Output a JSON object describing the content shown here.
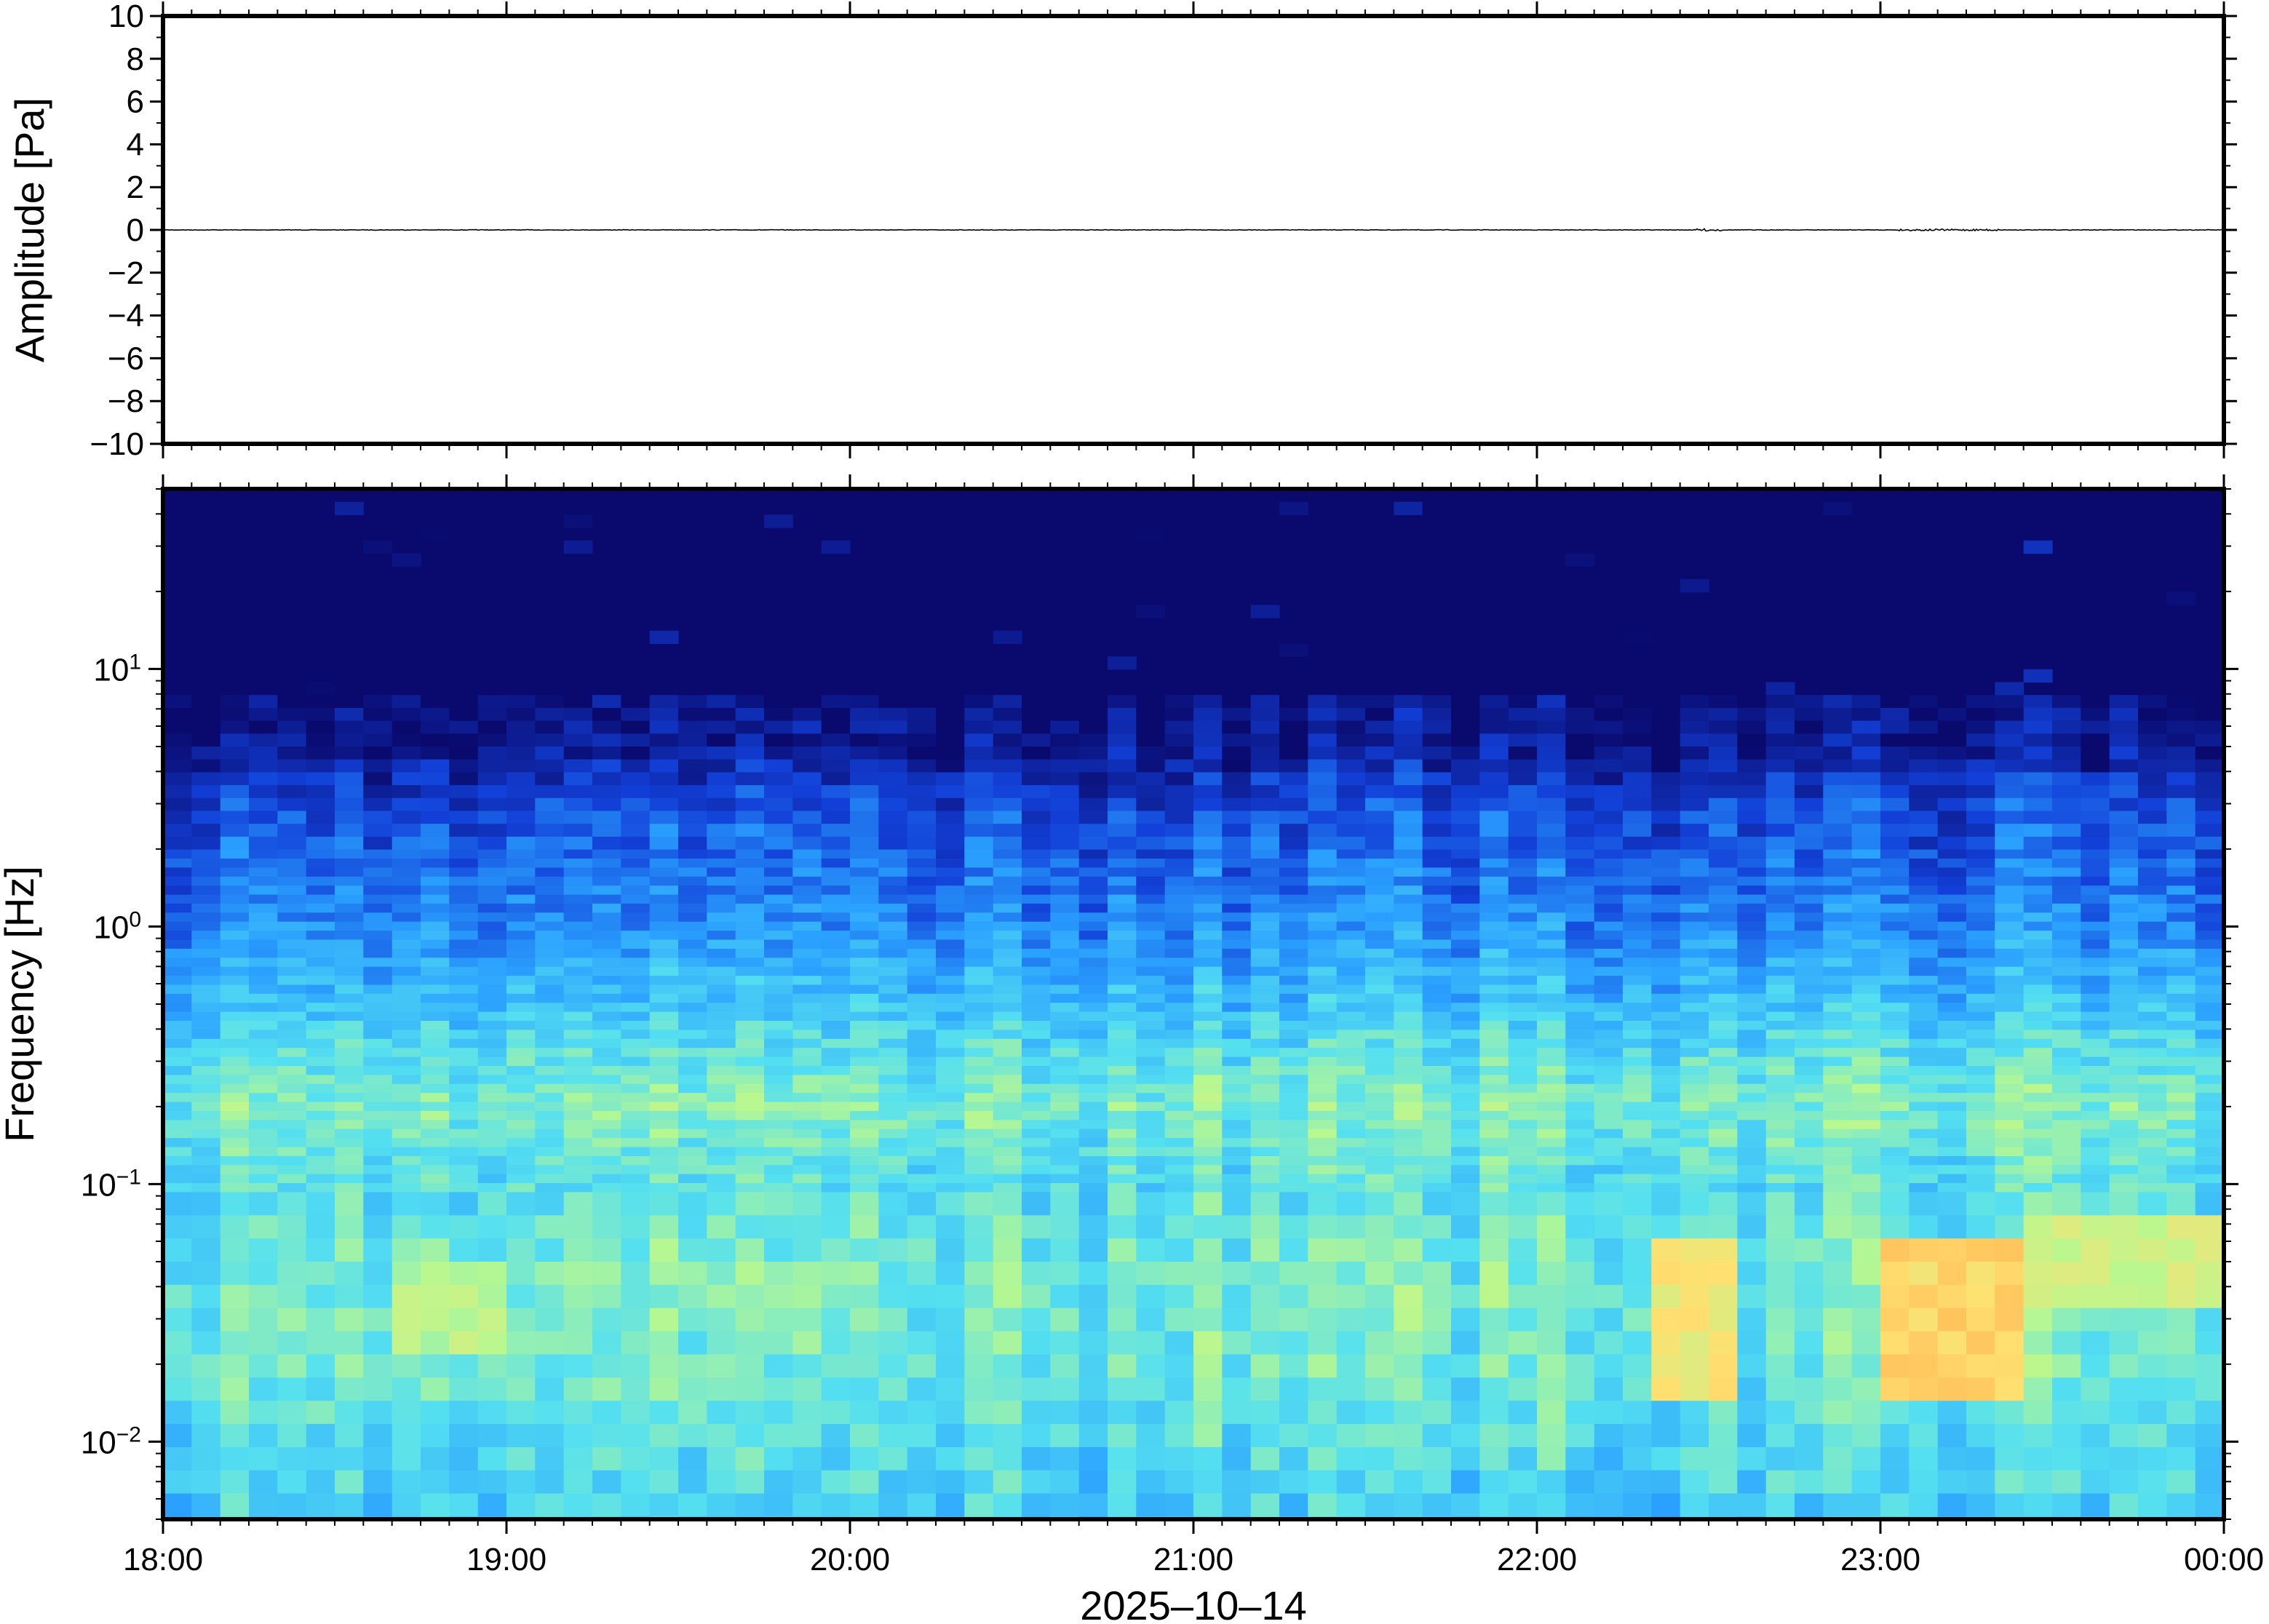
{
  "chart_data": [
    {
      "type": "line",
      "ylabel": "Amplitude [Pa]",
      "ylim": [
        -10,
        10
      ],
      "yticks": [
        "10",
        "8",
        "6",
        "4",
        "2",
        "0",
        "−2",
        "−4",
        "−6",
        "−8",
        "−10"
      ],
      "ytick_values": [
        10,
        8,
        6,
        4,
        2,
        0,
        -2,
        -4,
        -6,
        -8,
        -10
      ],
      "x_range": [
        "18:00",
        "00:00"
      ],
      "series": [
        {
          "x_hours": [
            18.0,
            19.0,
            20.0,
            21.0,
            22.0,
            22.5,
            23.0,
            23.2,
            24.0
          ],
          "values": [
            0,
            0,
            0,
            0,
            0,
            0,
            0,
            0,
            0
          ]
        }
      ],
      "grid": false,
      "line_color": "#000000"
    },
    {
      "type": "heatmap",
      "ylabel": "Frequency [Hz]",
      "xlabel": "2025‒10‒14",
      "y_scale": "log",
      "ylim": [
        0.005,
        50
      ],
      "yticks": [
        {
          "value": 10,
          "base": "10",
          "exp": "1"
        },
        {
          "value": 1,
          "base": "10",
          "exp": "0"
        },
        {
          "value": 0.1,
          "base": "10",
          "exp": "−1"
        },
        {
          "value": 0.01,
          "base": "10",
          "exp": "−2"
        }
      ],
      "xticks": [
        "18:00",
        "19:00",
        "20:00",
        "21:00",
        "22:00",
        "23:00",
        "00:00"
      ],
      "xtick_hours": [
        18,
        19,
        20,
        21,
        22,
        23,
        24
      ],
      "colormap": [
        "#0a0a6e",
        "#1240d8",
        "#2aa0ff",
        "#55e0f0",
        "#b8f890",
        "#ffe070",
        "#ff9a40"
      ],
      "intensity_profile": {
        "freq_hz": [
          50,
          10,
          5,
          3,
          1,
          0.5,
          0.3,
          0.2,
          0.1,
          0.05,
          0.02,
          0.005
        ],
        "level": [
          0.0,
          0.0,
          0.05,
          0.18,
          0.3,
          0.42,
          0.52,
          0.58,
          0.5,
          0.56,
          0.55,
          0.45
        ]
      },
      "hot_spots": [
        {
          "hours": [
            22.3,
            22.6
          ],
          "freq_hz": [
            0.015,
            0.06
          ],
          "level": 0.8
        },
        {
          "hours": [
            23.0,
            23.4
          ],
          "freq_hz": [
            0.015,
            0.06
          ],
          "level": 0.85
        },
        {
          "hours": [
            23.4,
            24.0
          ],
          "freq_hz": [
            0.03,
            0.07
          ],
          "level": 0.72
        },
        {
          "hours": [
            18.7,
            19.0
          ],
          "freq_hz": [
            0.02,
            0.05
          ],
          "level": 0.68
        }
      ],
      "grid": false
    }
  ]
}
